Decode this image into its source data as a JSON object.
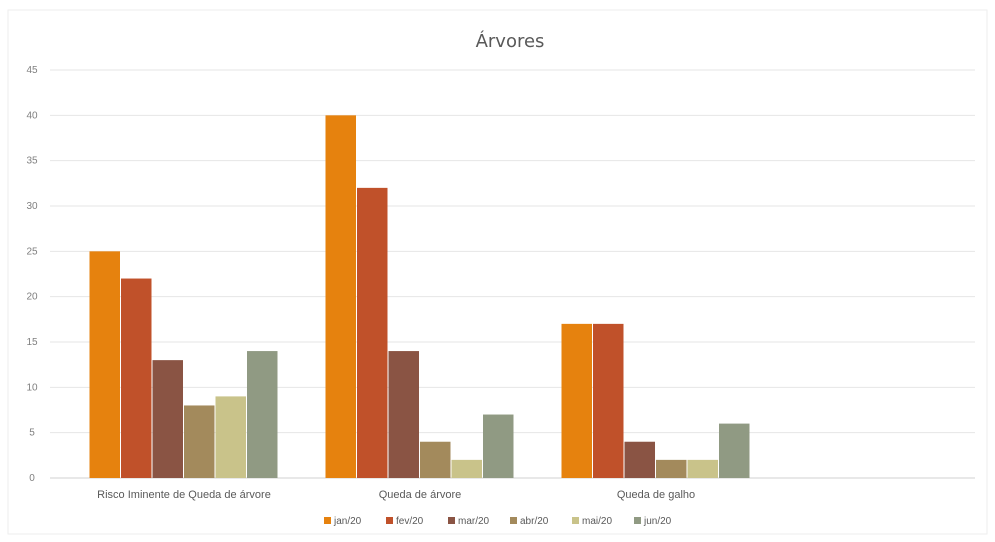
{
  "chart_data": {
    "type": "bar",
    "title": "Árvores",
    "categories": [
      "Risco Iminente de Queda de árvore",
      "Queda de árvore",
      "Queda de galho"
    ],
    "series": [
      {
        "name": "jan/20",
        "color": "#E6820E",
        "values": [
          25,
          40,
          17
        ]
      },
      {
        "name": "fev/20",
        "color": "#C0512A",
        "values": [
          22,
          32,
          17
        ]
      },
      {
        "name": "mar/20",
        "color": "#8A5444",
        "values": [
          13,
          14,
          4
        ]
      },
      {
        "name": "abr/20",
        "color": "#A38A5C",
        "values": [
          8,
          4,
          2
        ]
      },
      {
        "name": "mai/20",
        "color": "#C9C38A",
        "values": [
          9,
          2,
          2
        ]
      },
      {
        "name": "jun/20",
        "color": "#909A83",
        "values": [
          14,
          7,
          6
        ]
      }
    ],
    "ylim": [
      0,
      45
    ],
    "yticks": [
      0,
      5,
      10,
      15,
      20,
      25,
      30,
      35,
      40,
      45
    ],
    "xlabel": "",
    "ylabel": "",
    "grid": true,
    "legend": "bottom"
  }
}
